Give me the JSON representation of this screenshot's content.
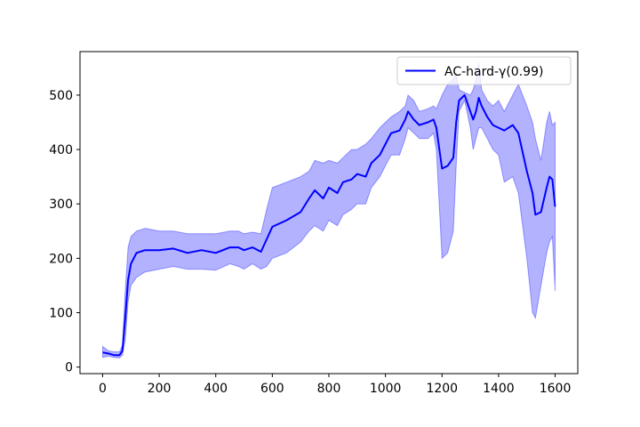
{
  "chart_data": {
    "type": "line",
    "title": "",
    "xlabel": "",
    "ylabel": "",
    "xlim": [
      -80,
      1680
    ],
    "ylim": [
      -12,
      580
    ],
    "xticks": [
      0,
      200,
      400,
      600,
      800,
      1000,
      1200,
      1400,
      1600
    ],
    "yticks": [
      0,
      100,
      200,
      300,
      400,
      500
    ],
    "grid": false,
    "legend": {
      "location": "top-right",
      "entries": [
        "AC-hard-γ(0.99)"
      ]
    },
    "series": [
      {
        "name": "AC-hard-γ(0.99)",
        "color": "#0000ff",
        "band_color": "#0000ff",
        "band_opacity": 0.3,
        "x": [
          0,
          20,
          40,
          60,
          70,
          80,
          90,
          100,
          120,
          150,
          200,
          250,
          300,
          350,
          400,
          450,
          480,
          500,
          530,
          560,
          580,
          600,
          650,
          700,
          730,
          750,
          780,
          800,
          830,
          850,
          880,
          900,
          930,
          950,
          980,
          1000,
          1020,
          1050,
          1070,
          1080,
          1100,
          1120,
          1150,
          1170,
          1180,
          1200,
          1220,
          1240,
          1250,
          1260,
          1280,
          1300,
          1310,
          1320,
          1330,
          1340,
          1360,
          1380,
          1400,
          1420,
          1450,
          1470,
          1500,
          1520,
          1530,
          1550,
          1570,
          1580,
          1590,
          1600
        ],
        "mean": [
          27,
          25,
          22,
          22,
          30,
          90,
          160,
          190,
          210,
          215,
          215,
          218,
          210,
          215,
          210,
          220,
          220,
          215,
          220,
          212,
          235,
          258,
          270,
          285,
          310,
          325,
          310,
          330,
          320,
          340,
          345,
          355,
          350,
          375,
          390,
          410,
          430,
          435,
          455,
          470,
          455,
          445,
          450,
          455,
          440,
          365,
          370,
          385,
          450,
          490,
          500,
          470,
          455,
          470,
          495,
          480,
          460,
          445,
          440,
          435,
          445,
          430,
          360,
          320,
          280,
          285,
          330,
          350,
          345,
          295
        ],
        "upper": [
          38,
          30,
          28,
          28,
          40,
          140,
          220,
          240,
          250,
          255,
          250,
          250,
          245,
          245,
          245,
          250,
          250,
          245,
          248,
          245,
          290,
          330,
          340,
          350,
          360,
          380,
          375,
          380,
          375,
          385,
          400,
          400,
          410,
          420,
          440,
          450,
          460,
          470,
          480,
          500,
          490,
          470,
          475,
          480,
          475,
          500,
          520,
          530,
          540,
          510,
          505,
          500,
          510,
          530,
          560,
          510,
          490,
          480,
          490,
          470,
          500,
          520,
          480,
          450,
          420,
          380,
          450,
          470,
          445,
          450
        ],
        "lower": [
          18,
          20,
          18,
          17,
          22,
          50,
          120,
          150,
          165,
          175,
          180,
          185,
          180,
          180,
          178,
          190,
          185,
          180,
          190,
          180,
          185,
          200,
          210,
          230,
          250,
          260,
          250,
          270,
          260,
          280,
          290,
          300,
          300,
          330,
          350,
          370,
          390,
          390,
          420,
          440,
          430,
          420,
          420,
          430,
          400,
          200,
          210,
          250,
          370,
          470,
          490,
          440,
          400,
          420,
          440,
          440,
          420,
          400,
          390,
          340,
          350,
          320,
          200,
          100,
          90,
          150,
          210,
          230,
          240,
          140
        ]
      }
    ]
  }
}
